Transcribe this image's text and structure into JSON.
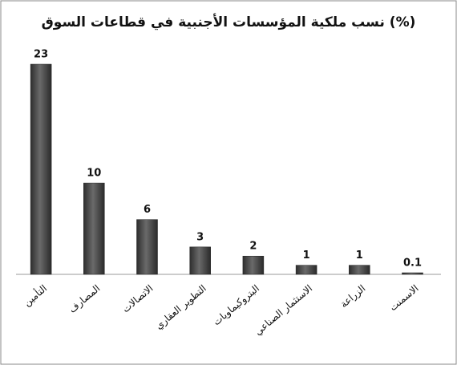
{
  "chart_data": {
    "type": "bar",
    "title": "نسب ملكية المؤسسات الأجنبية في قطاعات السوق (%)",
    "categories": [
      "التأمين",
      "المصارف",
      "الاتصالات",
      "التطوير العقاري",
      "البتروكيماويات",
      "الاستثمار الصناعي",
      "الزراعة",
      "الاسمنت"
    ],
    "values": [
      23,
      10,
      6,
      3,
      2,
      1,
      1,
      0.1
    ],
    "color": "#4a4a4a"
  }
}
